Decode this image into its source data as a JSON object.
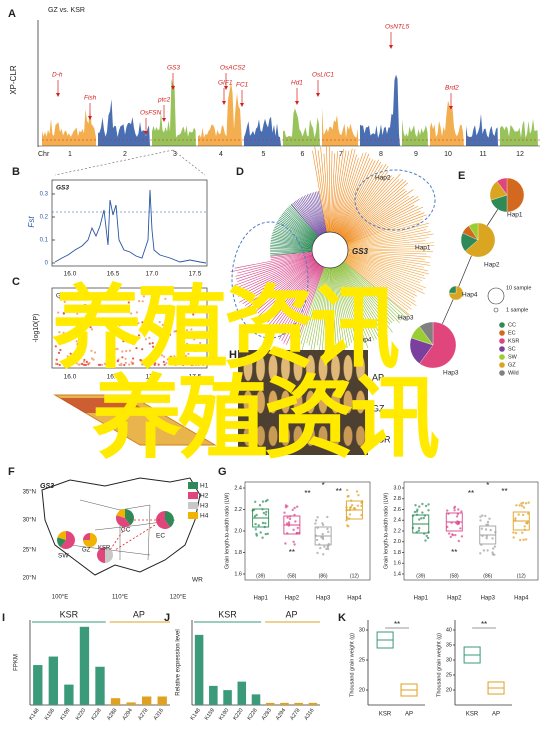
{
  "overlay": {
    "line1": "养殖资讯",
    "line2": "养殖资讯"
  },
  "panel_a": {
    "label": "A",
    "title": "GZ vs. KSR",
    "y_label": "XP-CLR",
    "chr_label": "Chr",
    "chromosomes": [
      "1",
      "2",
      "3",
      "4",
      "5",
      "6",
      "7",
      "8",
      "9",
      "10",
      "11",
      "12"
    ],
    "genes": [
      "D-h",
      "Fish",
      "OsFSN",
      "GS3",
      "ptc2",
      "GIF1",
      "OsACS2",
      "FC1",
      "Hd1",
      "OsLIC1",
      "OsNTL5",
      "Brd2"
    ]
  },
  "panel_b": {
    "label": "B",
    "gene": "GS3",
    "y_label": "Fst",
    "yticks": [
      "0",
      "0.1",
      "0.2",
      "0.3"
    ],
    "xticks": [
      "16.0",
      "16.5",
      "17.0",
      "17.5"
    ]
  },
  "panel_c": {
    "label": "C",
    "title": "GS3 for LW",
    "y_label": "-log10(P)",
    "xticks": [
      "16.0",
      "16.5",
      "17.0",
      "17.5"
    ],
    "x_label": "Chromosome 3 (Mb)"
  },
  "panel_d": {
    "label": "D",
    "gene": "GS3",
    "haplotypes": [
      "Hap1",
      "Hap2",
      "Hap3",
      "Hap4"
    ]
  },
  "panel_e": {
    "label": "E",
    "haplotypes": [
      "Hap1",
      "Hap2",
      "Hap4",
      "Hap3"
    ],
    "size_legend": [
      "10 sample",
      "1 sample"
    ],
    "groups": [
      {
        "name": "CC",
        "color": "#2e8b57"
      },
      {
        "name": "EC",
        "color": "#d2691e"
      },
      {
        "name": "KSR",
        "color": "#e0457b"
      },
      {
        "name": "SC",
        "color": "#7b3f9e"
      },
      {
        "name": "SW",
        "color": "#9acd32"
      },
      {
        "name": "GZ",
        "color": "#daa520"
      },
      {
        "name": "Wild",
        "color": "#808080"
      }
    ]
  },
  "panel_h": {
    "label": "H",
    "rows": [
      "AP",
      "GZ",
      "KSR"
    ]
  },
  "panel_f": {
    "label": "F",
    "gene": "GS3",
    "latitudes": [
      "35°N",
      "30°N",
      "25°N",
      "20°N"
    ],
    "longitudes": [
      "100°E",
      "110°E",
      "120°E"
    ],
    "regions": [
      "SW",
      "GZ",
      "CC",
      "KSR",
      "EC",
      "WR"
    ],
    "legend": [
      {
        "name": "H1",
        "color": "#2e8b57"
      },
      {
        "name": "H2",
        "color": "#e0457b"
      },
      {
        "name": "H3",
        "color": "#c8c8c8"
      },
      {
        "name": "H4",
        "color": "#f0b400"
      }
    ]
  },
  "panel_g": {
    "label": "G",
    "y_label": "Grain length-to-width ratio (LW)",
    "left_yticks": [
      "2.4",
      "2.2",
      "2.0",
      "1.8",
      "1.6"
    ],
    "right_yticks": [
      "3.0",
      "2.8",
      "2.6",
      "2.4",
      "2.2",
      "2.0",
      "1.8",
      "1.6",
      "1.4"
    ],
    "categories": [
      "Hap1",
      "Hap2",
      "Hap3",
      "Hap4"
    ],
    "counts": [
      "(39)",
      "(58)",
      "(86)",
      "(12)"
    ],
    "sig": [
      "*",
      "**",
      "**",
      "**"
    ]
  },
  "panel_i": {
    "label": "I",
    "y_label": "FPKM",
    "groups": [
      "KSR",
      "AP"
    ],
    "categories": [
      "K148",
      "K156",
      "K199",
      "K220",
      "K228",
      "A288",
      "A294",
      "A278",
      "A316"
    ],
    "values": [
      0.47,
      0.57,
      0.24,
      0.92,
      0.45,
      0.08,
      0.03,
      0.1,
      0.1
    ],
    "ylim": [
      0,
      1
    ]
  },
  "panel_j": {
    "label": "J",
    "y_label": "Relative expression level",
    "groups": [
      "KSR",
      "AP"
    ],
    "categories": [
      "K148",
      "K159",
      "K190",
      "K220",
      "K228",
      "A283",
      "A294",
      "A278",
      "A316"
    ],
    "values": [
      0.033,
      0.009,
      0.007,
      0.011,
      0.005,
      0.001,
      0.001,
      0.001,
      0.001
    ],
    "ylim": [
      0,
      0.04
    ]
  },
  "panel_k": {
    "label": "K",
    "y_label": "Thousand grain weight (g)",
    "left_yticks": [
      "30",
      "25",
      "20"
    ],
    "right_yticks": [
      "40",
      "35",
      "30",
      "25",
      "20"
    ],
    "categories": [
      "KSR",
      "AP"
    ],
    "sig": "**"
  }
}
